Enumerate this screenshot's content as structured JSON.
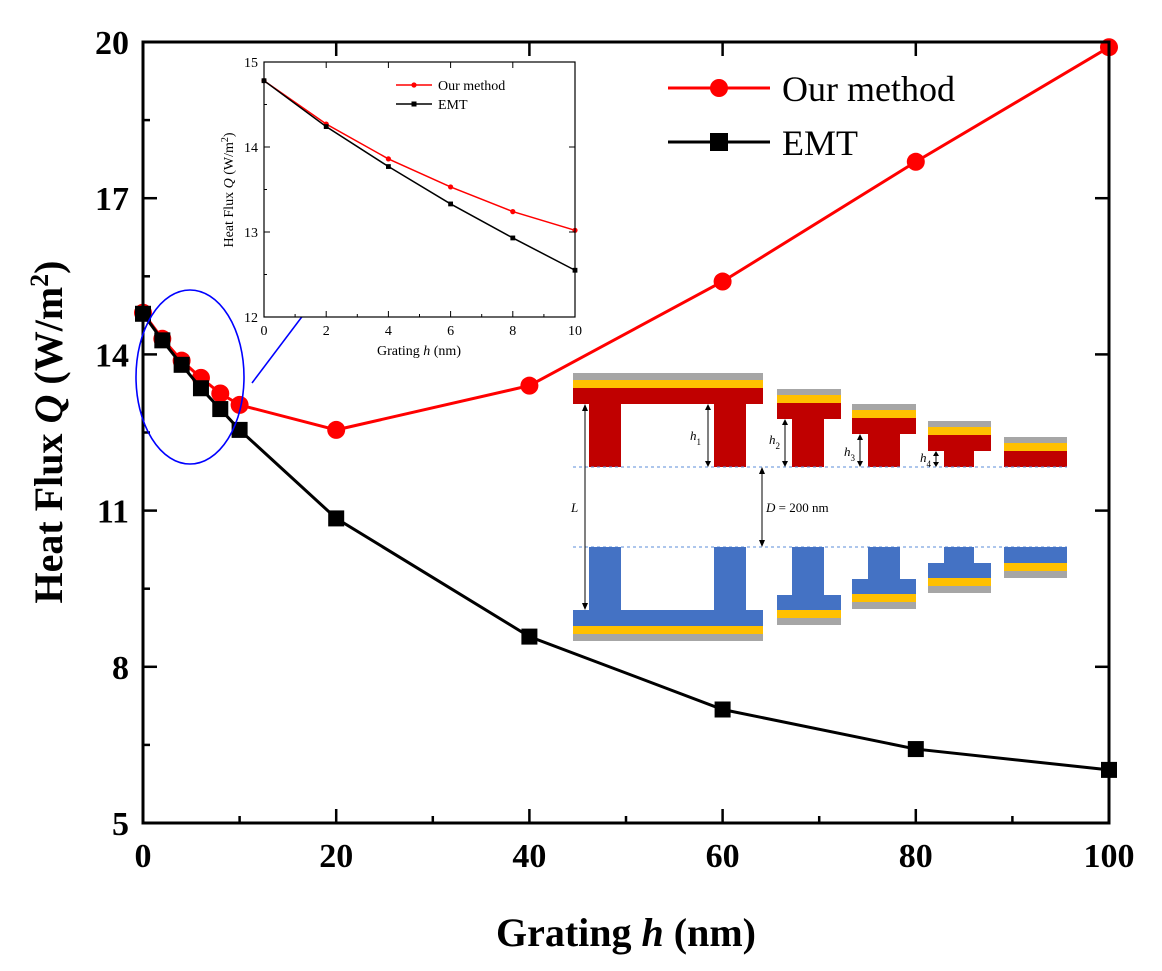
{
  "chart_data": [
    {
      "id": "main",
      "type": "line",
      "title": "",
      "xlabel": "Grating h (nm)",
      "xlabel_pre": "Grating ",
      "xlabel_var": "h",
      "xlabel_post": " (nm)",
      "ylabel": "Heat Flux Q (W/m2)",
      "ylabel_pre": "Heat Flux ",
      "ylabel_var": "Q",
      "ylabel_unit": " (W/m",
      "ylabel_sup": "2",
      "ylabel_close": ")",
      "xlim": [
        0,
        100
      ],
      "ylim": [
        5,
        20
      ],
      "xticks": [
        0,
        20,
        40,
        60,
        80,
        100
      ],
      "yticks": [
        5,
        8,
        11,
        14,
        17,
        20
      ],
      "legend_position": "top-right",
      "series": [
        {
          "name": "Our method",
          "color": "#ff0000",
          "marker": "circle",
          "x": [
            0,
            2,
            4,
            6,
            8,
            10,
            20,
            40,
            60,
            80,
            100
          ],
          "y": [
            14.8,
            14.3,
            13.88,
            13.55,
            13.25,
            13.03,
            12.55,
            13.4,
            15.4,
            17.7,
            19.9
          ]
        },
        {
          "name": "EMT",
          "color": "#000000",
          "marker": "square",
          "x": [
            0,
            2,
            4,
            6,
            8,
            10,
            20,
            40,
            60,
            80,
            100
          ],
          "y": [
            14.78,
            14.27,
            13.8,
            13.35,
            12.95,
            12.55,
            10.85,
            8.58,
            7.18,
            6.42,
            6.02
          ]
        }
      ]
    },
    {
      "id": "inset",
      "type": "line",
      "title": "",
      "xlabel": "Grating h (nm)",
      "xlabel_pre": "Grating ",
      "xlabel_var": "h",
      "xlabel_post": " (nm)",
      "ylabel": "Heat Flux Q (W/m2)",
      "ylabel_pre": "Heat Flux ",
      "ylabel_var": "Q",
      "ylabel_unit": " (W/m",
      "ylabel_sup": "2",
      "ylabel_close": ")",
      "xlim": [
        0,
        10
      ],
      "ylim": [
        12,
        15
      ],
      "xticks": [
        0,
        2,
        4,
        6,
        8,
        10
      ],
      "yticks": [
        12,
        13,
        14,
        15
      ],
      "legend_position": "top-right",
      "series": [
        {
          "name": "Our method",
          "color": "#ff0000",
          "marker": "circle",
          "x": [
            0,
            2,
            4,
            6,
            8,
            10
          ],
          "y": [
            14.78,
            14.27,
            13.86,
            13.53,
            13.24,
            13.02
          ]
        },
        {
          "name": "EMT",
          "color": "#000000",
          "marker": "square",
          "x": [
            0,
            2,
            4,
            6,
            8,
            10
          ],
          "y": [
            14.78,
            14.24,
            13.77,
            13.33,
            12.93,
            12.55
          ]
        }
      ]
    }
  ],
  "schematic": {
    "labels": {
      "h1_var": "h",
      "h1_sub": "1",
      "h2_var": "h",
      "h2_sub": "2",
      "h3_var": "h",
      "h3_sub": "3",
      "h4_var": "h",
      "h4_sub": "4",
      "L": "L",
      "D_var": "D",
      "D_value": " = 200 nm"
    },
    "colors": {
      "top": "#c00000",
      "bottom": "#4472c4",
      "gold": "#ffc000",
      "gray": "#a6a6a6",
      "zoom": "#0000ff",
      "dash": "#5b8dd9"
    }
  }
}
